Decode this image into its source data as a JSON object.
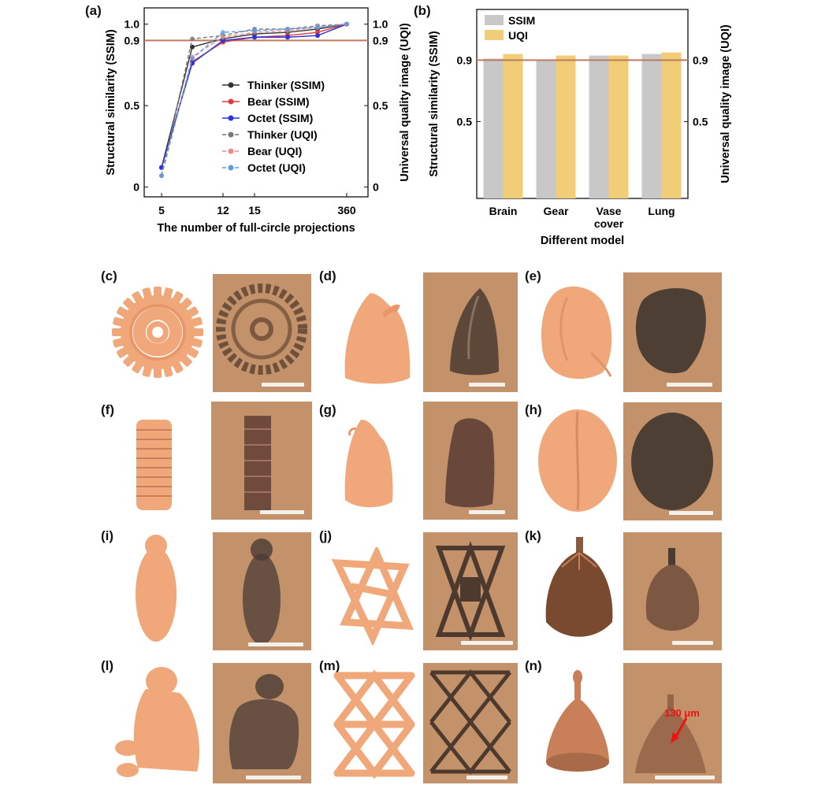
{
  "panel_labels": {
    "a": "(a)",
    "b": "(b)",
    "c": "(c)",
    "d": "(d)",
    "e": "(e)",
    "f": "(f)",
    "g": "(g)",
    "h": "(h)",
    "i": "(i)",
    "j": "(j)",
    "k": "(k)",
    "l": "(l)",
    "m": "(m)",
    "n": "(n)"
  },
  "annotation": "130 μm",
  "colors": {
    "render": "#f0a77a",
    "photo_bg": "#c4926a",
    "threshold": "#c07860",
    "ssim_bar": "#c8c8c8",
    "uqi_bar": "#f1cd78"
  },
  "chart_data": [
    {
      "type": "line",
      "xlabel": "The number of full-circle projections",
      "ylabel": "Structural similarity (SSIM)",
      "ylabel_right": "Universal quality image (UQI)",
      "x_ticks": [
        "5",
        "12",
        "15",
        "360"
      ],
      "y_ticks": [
        "0",
        "0.5",
        "0.9",
        "1.0"
      ],
      "y_ticks_right": [
        "0",
        "0.5",
        "0.9",
        "1.0"
      ],
      "ylim": [
        0,
        1.0
      ],
      "threshold": 0.9,
      "x_index": [
        0,
        1,
        2,
        3,
        4,
        5,
        6
      ],
      "series": [
        {
          "name": "Thinker (SSIM)",
          "color": "#333333",
          "dash": false,
          "values": [
            0.12,
            0.86,
            0.91,
            0.94,
            0.95,
            0.97,
            1.0
          ]
        },
        {
          "name": "Bear (SSIM)",
          "color": "#e03a3a",
          "dash": false,
          "values": [
            0.12,
            0.77,
            0.89,
            0.92,
            0.93,
            0.95,
            1.0
          ]
        },
        {
          "name": "Octet (SSIM)",
          "color": "#2b35d9",
          "dash": false,
          "values": [
            0.12,
            0.76,
            0.9,
            0.92,
            0.92,
            0.93,
            1.0
          ]
        },
        {
          "name": "Thinker (UQI)",
          "color": "#777777",
          "dash": true,
          "values": [
            0.07,
            0.91,
            0.93,
            0.97,
            0.97,
            0.99,
            1.0
          ]
        },
        {
          "name": "Bear (UQI)",
          "color": "#ef8a8a",
          "dash": true,
          "values": [
            0.07,
            0.8,
            0.92,
            0.95,
            0.96,
            0.98,
            1.0
          ]
        },
        {
          "name": "Octet (UQI)",
          "color": "#5a9ae8",
          "dash": true,
          "values": [
            0.07,
            0.79,
            0.95,
            0.96,
            0.97,
            0.98,
            1.0
          ]
        }
      ]
    },
    {
      "type": "bar",
      "xlabel": "Different model",
      "ylabel": "Structural similarity (SSIM)",
      "ylabel_right": "Universal quality image (UQI)",
      "categories": [
        "Brain",
        "Gear",
        "Vase\ncover",
        "Lung"
      ],
      "y_ticks": [
        "0.5",
        "0.9"
      ],
      "y_ticks_right": [
        "0.5",
        "0.9"
      ],
      "ylim": [
        0,
        1.23
      ],
      "threshold": 0.9,
      "series": [
        {
          "name": "SSIM",
          "color": "#c8c8c8",
          "values": [
            0.91,
            0.9,
            0.93,
            0.94
          ]
        },
        {
          "name": "UQI",
          "color": "#f1cd78",
          "values": [
            0.94,
            0.93,
            0.93,
            0.95
          ]
        }
      ]
    }
  ]
}
